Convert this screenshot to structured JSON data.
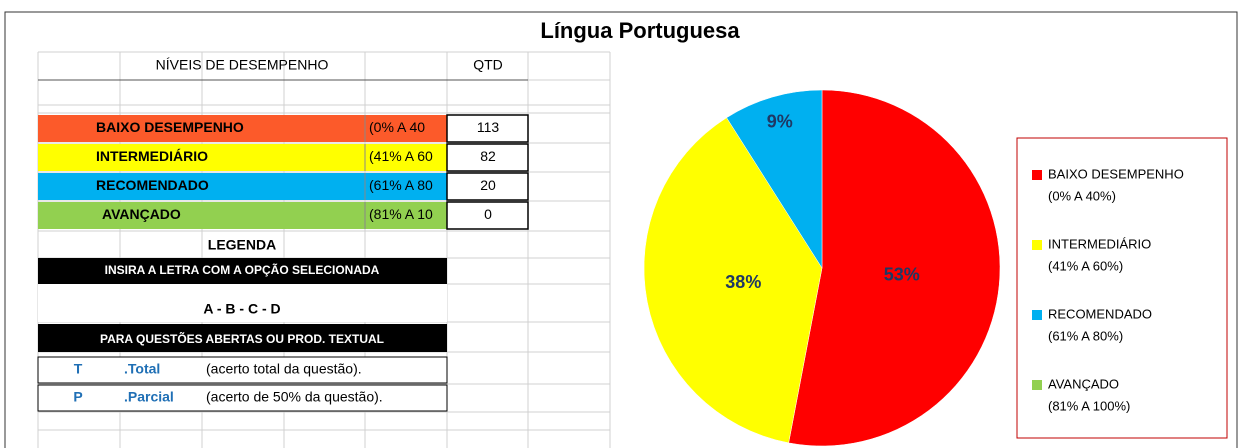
{
  "title": "Língua Portuguesa",
  "table": {
    "headers": [
      "NÍVEIS DE DESEMPENHO",
      "QTD"
    ],
    "rows": [
      {
        "name": "BAIXO DESEMPENHO",
        "range": "(0% A 40",
        "qtd": 113,
        "color": "#fc5a2a"
      },
      {
        "name": "INTERMEDIÁRIO",
        "range": "(41% A 60",
        "qtd": 82,
        "color": "#ffff00"
      },
      {
        "name": "RECOMENDADO",
        "range": "(61% A 80",
        "qtd": 20,
        "color": "#00b0f0"
      },
      {
        "name": "AVANÇADO",
        "range": "(81% A 10",
        "qtd": 0,
        "color": "#92d050"
      }
    ]
  },
  "legend_section": {
    "title": "LEGENDA",
    "instruction": "INSIRA A LETRA COM A OPÇÃO SELECIONADA",
    "options": "A - B - C - D",
    "open_questions": "PARA QUESTÕES ABERTAS OU PROD. TEXTUAL",
    "rows": [
      [
        "T",
        ".Total",
        "(acerto total da questão)."
      ],
      [
        "P",
        ".Parcial",
        "(acerto de 50% da questão)."
      ]
    ]
  },
  "chart_data": {
    "type": "pie",
    "categories": [
      "BAIXO DESEMPENHO",
      "INTERMEDIÁRIO",
      "RECOMENDADO",
      "AVANÇADO"
    ],
    "category_ranges": [
      "(0% A 40%)",
      "(41% A 60%)",
      "(61% A 80%)",
      "(81% A 100%)"
    ],
    "values": [
      53,
      38,
      9,
      0
    ],
    "value_labels": [
      "53%",
      "38%",
      "9%",
      null
    ],
    "colors": [
      "#ff0000",
      "#ffff00",
      "#00b0f0",
      "#92d050"
    ]
  }
}
